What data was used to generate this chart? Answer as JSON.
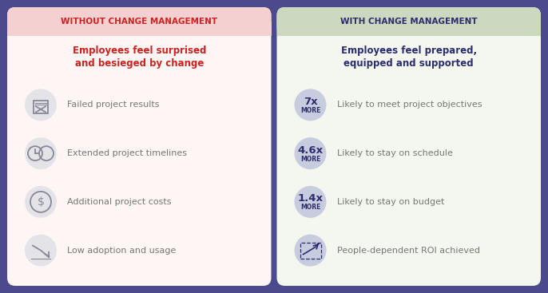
{
  "bg_color": "#4a4a8c",
  "left_panel_color": "#fef5f5",
  "right_panel_color": "#f4f6f0",
  "left_header_bg": "#f5d0d0",
  "right_header_bg": "#ccd8c0",
  "left_title": "WITHOUT CHANGE MANAGEMENT",
  "right_title": "WITH CHANGE MANAGEMENT",
  "left_title_color": "#cc2222",
  "right_title_color": "#2d2d6e",
  "left_subtitle_line1": "Employees feel surprised",
  "left_subtitle_line2": "and besieged by change",
  "left_subtitle_color": "#cc2222",
  "right_subtitle_line1": "Employees feel prepared,",
  "right_subtitle_line2": "equipped and supported",
  "right_subtitle_color": "#2d2d6e",
  "left_items": [
    "Failed project results",
    "Extended project timelines",
    "Additional project costs",
    "Low adoption and usage"
  ],
  "right_items": [
    "Likely to meet project objectives",
    "Likely to stay on schedule",
    "Likely to stay on budget",
    "People-dependent ROI achieved"
  ],
  "right_badges": [
    "7x",
    "4.6x",
    "1.4x",
    ""
  ],
  "badge_color": "#c8ccdf",
  "icon_circle_color": "#e4e4e8",
  "item_text_color": "#777777",
  "subtitle_fontsize": 8.5,
  "title_fontsize": 7.5,
  "item_fontsize": 8.0,
  "badge_num_fontsize": 9.5,
  "badge_more_fontsize": 5.5,
  "badge_text_color": "#2d2d6e"
}
